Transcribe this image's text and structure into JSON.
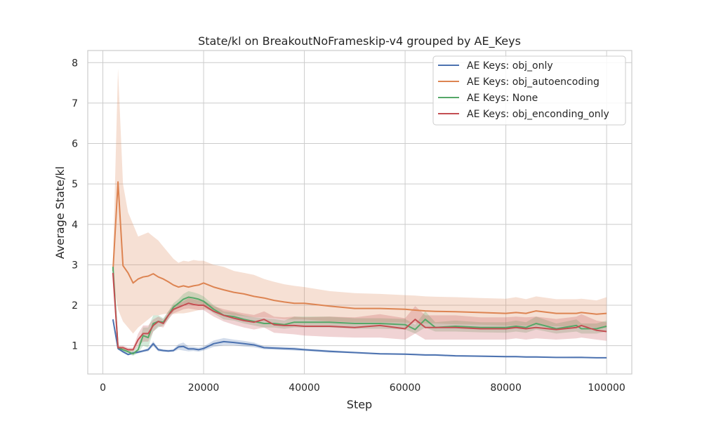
{
  "chart_data": {
    "type": "line",
    "title": "State/kl on BreakoutNoFrameskip-v4 grouped by AE_Keys",
    "xlabel": "Step",
    "ylabel": "Average State/kl",
    "xlim": [
      -3000,
      105000
    ],
    "ylim": [
      0.3,
      8.3
    ],
    "xticks": [
      0,
      20000,
      40000,
      60000,
      80000,
      100000
    ],
    "yticks": [
      1,
      2,
      3,
      4,
      5,
      6,
      7,
      8
    ],
    "grid": true,
    "legend_position": "top-right",
    "x": [
      2000,
      3000,
      4000,
      5000,
      6000,
      7000,
      8000,
      9000,
      10000,
      11000,
      12000,
      13000,
      14000,
      15000,
      16000,
      17000,
      18000,
      19000,
      20000,
      22000,
      24000,
      26000,
      28000,
      30000,
      32000,
      34000,
      36000,
      38000,
      40000,
      45000,
      50000,
      55000,
      60000,
      62000,
      64000,
      66000,
      70000,
      75000,
      80000,
      82000,
      84000,
      86000,
      90000,
      94000,
      95000,
      98000,
      100000
    ],
    "series": [
      {
        "name": "AE Keys: obj_only",
        "color": "#4c72b0",
        "values": [
          1.65,
          0.93,
          0.85,
          0.78,
          0.82,
          0.84,
          0.87,
          0.9,
          1.05,
          0.9,
          0.88,
          0.87,
          0.88,
          0.97,
          0.98,
          0.92,
          0.92,
          0.9,
          0.93,
          1.05,
          1.1,
          1.08,
          1.05,
          1.02,
          0.95,
          0.94,
          0.93,
          0.92,
          0.9,
          0.86,
          0.83,
          0.8,
          0.79,
          0.78,
          0.77,
          0.77,
          0.75,
          0.74,
          0.73,
          0.73,
          0.72,
          0.72,
          0.71,
          0.71,
          0.71,
          0.7,
          0.7
        ],
        "lower": [
          1.6,
          0.9,
          0.82,
          0.76,
          0.79,
          0.81,
          0.84,
          0.86,
          0.99,
          0.86,
          0.85,
          0.84,
          0.85,
          0.9,
          0.88,
          0.86,
          0.87,
          0.85,
          0.88,
          0.97,
          1.01,
          1.01,
          0.98,
          0.96,
          0.91,
          0.9,
          0.89,
          0.88,
          0.87,
          0.83,
          0.81,
          0.78,
          0.77,
          0.76,
          0.75,
          0.75,
          0.73,
          0.72,
          0.71,
          0.71,
          0.7,
          0.7,
          0.7,
          0.69,
          0.69,
          0.69,
          0.69
        ],
        "upper": [
          1.7,
          0.96,
          0.88,
          0.8,
          0.85,
          0.87,
          0.9,
          0.94,
          1.11,
          0.94,
          0.91,
          0.9,
          0.91,
          1.04,
          1.08,
          0.98,
          0.97,
          0.95,
          0.98,
          1.13,
          1.19,
          1.15,
          1.12,
          1.08,
          0.99,
          0.98,
          0.97,
          0.96,
          0.93,
          0.89,
          0.85,
          0.82,
          0.81,
          0.8,
          0.79,
          0.79,
          0.77,
          0.76,
          0.75,
          0.75,
          0.74,
          0.74,
          0.72,
          0.73,
          0.73,
          0.71,
          0.71
        ]
      },
      {
        "name": "AE Keys: obj_autoencoding",
        "color": "#dd8452",
        "values": [
          2.85,
          5.05,
          2.98,
          2.8,
          2.55,
          2.65,
          2.7,
          2.72,
          2.78,
          2.7,
          2.65,
          2.58,
          2.5,
          2.45,
          2.48,
          2.45,
          2.48,
          2.5,
          2.55,
          2.45,
          2.38,
          2.32,
          2.28,
          2.22,
          2.18,
          2.12,
          2.08,
          2.05,
          2.05,
          1.98,
          1.92,
          1.92,
          1.9,
          1.88,
          1.86,
          1.85,
          1.84,
          1.82,
          1.8,
          1.82,
          1.8,
          1.86,
          1.8,
          1.8,
          1.82,
          1.78,
          1.8
        ],
        "lower": [
          2.6,
          1.9,
          1.6,
          1.45,
          1.3,
          1.45,
          1.55,
          1.65,
          1.75,
          1.75,
          1.78,
          1.8,
          1.78,
          1.8,
          1.8,
          1.82,
          1.85,
          1.88,
          1.9,
          1.87,
          1.8,
          1.75,
          1.73,
          1.7,
          1.7,
          1.68,
          1.65,
          1.65,
          1.65,
          1.6,
          1.58,
          1.58,
          1.57,
          1.56,
          1.55,
          1.55,
          1.53,
          1.52,
          1.5,
          1.5,
          1.49,
          1.5,
          1.48,
          1.47,
          1.48,
          1.45,
          1.45
        ],
        "upper": [
          3.1,
          7.85,
          5.0,
          4.3,
          4.0,
          3.7,
          3.75,
          3.8,
          3.7,
          3.6,
          3.45,
          3.3,
          3.15,
          3.05,
          3.1,
          3.08,
          3.12,
          3.1,
          3.1,
          3.0,
          2.95,
          2.85,
          2.8,
          2.75,
          2.65,
          2.58,
          2.52,
          2.48,
          2.45,
          2.35,
          2.3,
          2.28,
          2.25,
          2.24,
          2.22,
          2.21,
          2.2,
          2.18,
          2.16,
          2.2,
          2.15,
          2.22,
          2.15,
          2.15,
          2.16,
          2.12,
          2.2
        ]
      },
      {
        "name": "AE Keys: None",
        "color": "#55a868",
        "values": [
          2.95,
          0.95,
          0.9,
          0.85,
          0.8,
          0.9,
          1.25,
          1.2,
          1.55,
          1.6,
          1.58,
          1.75,
          1.95,
          2.05,
          2.15,
          2.2,
          2.18,
          2.15,
          2.1,
          1.9,
          1.75,
          1.72,
          1.65,
          1.6,
          1.55,
          1.55,
          1.52,
          1.58,
          1.58,
          1.58,
          1.55,
          1.55,
          1.52,
          1.4,
          1.65,
          1.45,
          1.48,
          1.45,
          1.45,
          1.48,
          1.45,
          1.55,
          1.42,
          1.5,
          1.42,
          1.42,
          1.48
        ],
        "lower": [
          2.7,
          0.9,
          0.85,
          0.8,
          0.75,
          0.82,
          1.0,
          0.95,
          1.35,
          1.45,
          1.5,
          1.65,
          1.85,
          1.95,
          2.02,
          2.05,
          2.05,
          2.02,
          1.98,
          1.8,
          1.65,
          1.62,
          1.55,
          1.5,
          1.45,
          1.45,
          1.42,
          1.45,
          1.45,
          1.45,
          1.42,
          1.42,
          1.4,
          1.3,
          1.45,
          1.35,
          1.35,
          1.33,
          1.32,
          1.35,
          1.32,
          1.4,
          1.3,
          1.35,
          1.3,
          1.3,
          1.35
        ],
        "upper": [
          3.2,
          1.0,
          0.95,
          0.9,
          0.88,
          1.0,
          1.45,
          1.45,
          1.75,
          1.75,
          1.68,
          1.85,
          2.05,
          2.15,
          2.28,
          2.35,
          2.32,
          2.28,
          2.22,
          2.0,
          1.85,
          1.82,
          1.75,
          1.7,
          1.68,
          1.66,
          1.62,
          1.72,
          1.72,
          1.72,
          1.68,
          1.68,
          1.66,
          1.52,
          1.85,
          1.58,
          1.62,
          1.58,
          1.58,
          1.62,
          1.58,
          1.72,
          1.55,
          1.65,
          1.55,
          1.55,
          1.62
        ]
      },
      {
        "name": "AE Keys: obj_enconding_only",
        "color": "#c44e52",
        "values": [
          2.8,
          0.95,
          0.95,
          0.9,
          0.9,
          1.15,
          1.3,
          1.3,
          1.5,
          1.6,
          1.55,
          1.75,
          1.9,
          1.95,
          2.0,
          2.05,
          2.02,
          2.0,
          2.0,
          1.85,
          1.75,
          1.68,
          1.62,
          1.58,
          1.65,
          1.52,
          1.5,
          1.5,
          1.48,
          1.48,
          1.45,
          1.5,
          1.42,
          1.65,
          1.45,
          1.45,
          1.45,
          1.42,
          1.42,
          1.45,
          1.42,
          1.45,
          1.4,
          1.45,
          1.5,
          1.38,
          1.35
        ],
        "lower": [
          2.55,
          0.9,
          0.9,
          0.85,
          0.85,
          1.0,
          1.1,
          1.1,
          1.35,
          1.48,
          1.45,
          1.65,
          1.8,
          1.85,
          1.9,
          1.92,
          1.9,
          1.88,
          1.88,
          1.72,
          1.6,
          1.52,
          1.45,
          1.4,
          1.45,
          1.32,
          1.3,
          1.28,
          1.25,
          1.22,
          1.2,
          1.2,
          1.15,
          1.3,
          1.15,
          1.15,
          1.15,
          1.15,
          1.15,
          1.18,
          1.15,
          1.18,
          1.15,
          1.18,
          1.2,
          1.15,
          1.12
        ],
        "upper": [
          3.05,
          1.0,
          1.0,
          0.95,
          0.95,
          1.3,
          1.5,
          1.5,
          1.65,
          1.72,
          1.65,
          1.85,
          2.0,
          2.05,
          2.1,
          2.18,
          2.15,
          2.12,
          2.12,
          1.98,
          1.9,
          1.85,
          1.8,
          1.76,
          1.85,
          1.72,
          1.7,
          1.72,
          1.7,
          1.72,
          1.7,
          1.78,
          1.68,
          1.98,
          1.75,
          1.75,
          1.75,
          1.7,
          1.7,
          1.72,
          1.7,
          1.72,
          1.66,
          1.72,
          1.78,
          1.62,
          1.58
        ]
      }
    ]
  }
}
